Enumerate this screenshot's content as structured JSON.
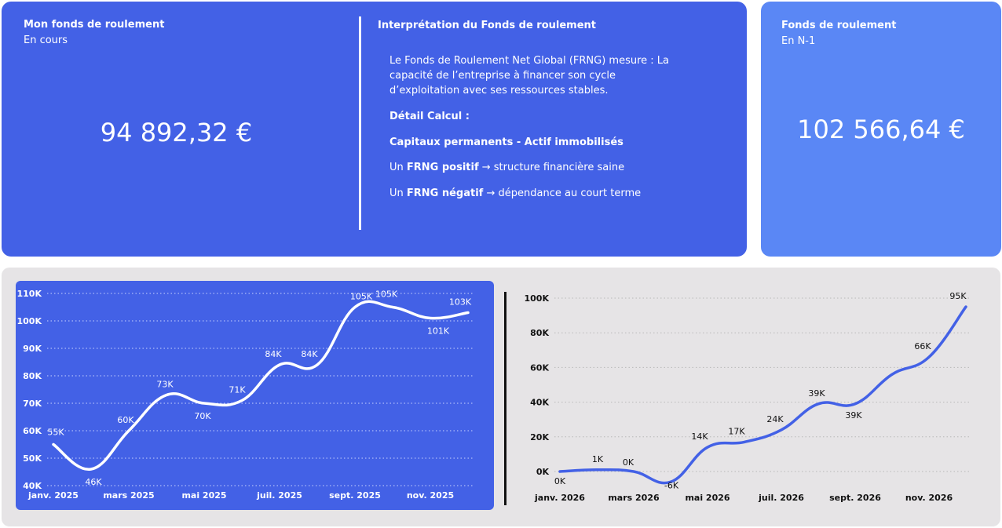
{
  "card_current": {
    "title": "Mon fonds de roulement",
    "subtitle": "En cours",
    "value": "94 892,32 €"
  },
  "interpretation": {
    "title": "Interprétation du Fonds de roulement",
    "paragraph": "Le Fonds de Roulement Net Global (FRNG) mesure : La capacité de l’entreprise à financer son cycle d’exploitation avec ses ressources stables.",
    "calc_label": "Détail Calcul :",
    "formula": "Capitaux permanents - Actif immobilisés",
    "positive_prefix": "Un ",
    "positive_bold": "FRNG positif",
    "positive_suffix": " → structure financière saine",
    "negative_prefix": "Un ",
    "negative_bold": "FRNG négatif",
    "negative_suffix": " → dépendance au court terme"
  },
  "card_previous": {
    "title": "Fonds de roulement",
    "subtitle": "En N-1",
    "value": "102 566,64 €"
  },
  "colors": {
    "primary_blue": "#4361e6",
    "light_blue": "#5a87f5",
    "panel_gray": "#e6e4e6",
    "line_white": "#ffffff",
    "line_blue": "#4361e6"
  },
  "chart_data": [
    {
      "type": "line",
      "x": [
        "janv. 2025",
        "févr. 2025",
        "mars 2025",
        "avr. 2025",
        "mai 2025",
        "juin 2025",
        "juil. 2025",
        "août 2025",
        "sept. 2025",
        "oct. 2025",
        "nov. 2025",
        "déc. 2025"
      ],
      "xtick_labels": [
        "janv. 2025",
        "mars 2025",
        "mai 2025",
        "juil. 2025",
        "sept. 2025",
        "nov. 2025"
      ],
      "values": [
        55,
        46,
        60,
        73,
        70,
        71,
        84,
        84,
        105,
        105,
        101,
        103
      ],
      "data_labels": [
        "55K",
        "46K",
        "60K",
        "73K",
        "70K",
        "71K",
        "84K",
        "84K",
        "105K",
        "105K",
        "101K",
        "103K"
      ],
      "yticks": [
        40,
        50,
        60,
        70,
        80,
        90,
        100,
        110
      ],
      "ytick_labels": [
        "40K",
        "50K",
        "60K",
        "70K",
        "80K",
        "90K",
        "100K",
        "110K"
      ],
      "ylim": [
        40,
        110
      ],
      "grid": true
    },
    {
      "type": "line",
      "x": [
        "janv. 2026",
        "févr. 2026",
        "mars 2026",
        "avr. 2026",
        "mai 2026",
        "juin 2026",
        "juil. 2026",
        "août 2026",
        "sept. 2026",
        "oct. 2026",
        "nov. 2026",
        "déc. 2026"
      ],
      "xtick_labels": [
        "janv. 2026",
        "mars 2026",
        "mai 2026",
        "juil. 2026",
        "sept. 2026",
        "nov. 2026"
      ],
      "values": [
        0,
        1,
        0,
        -6,
        14,
        17,
        24,
        39,
        39,
        56,
        66,
        95
      ],
      "data_labels": [
        "0K",
        "1K",
        "0K",
        "-6K",
        "14K",
        "17K",
        "24K",
        "39K",
        "39K",
        "",
        "66K",
        "95K"
      ],
      "yticks": [
        0,
        20,
        40,
        60,
        80,
        100
      ],
      "ytick_labels": [
        "0K",
        "20K",
        "40K",
        "60K",
        "80K",
        "100K"
      ],
      "ylim": [
        0,
        100
      ],
      "grid": true
    }
  ]
}
